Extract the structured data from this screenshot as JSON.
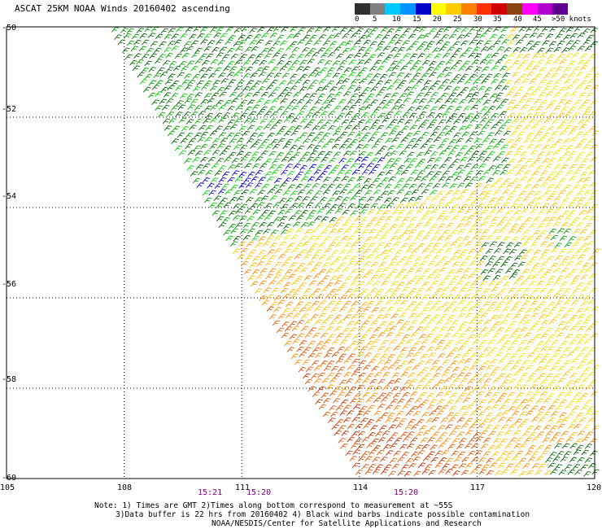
{
  "header": {
    "title": "ASCAT 25KM NOAA Winds 20160402 ascending"
  },
  "color_scale": {
    "labels": [
      "0",
      "5",
      "10",
      "15",
      "20",
      "25",
      "30",
      "35",
      "40",
      "45",
      ">50 knots"
    ],
    "colors": [
      "#303030",
      "#808080",
      "#00c8ff",
      "#0096ff",
      "#0000c8",
      "#ffff00",
      "#ffcc00",
      "#ff8000",
      "#ff3000",
      "#d00000",
      "#8b4513",
      "#ff00ff",
      "#b000d0",
      "#600090"
    ]
  },
  "map": {
    "lat_labels": [
      "-50",
      "-52",
      "-54",
      "-56",
      "-58",
      "-60"
    ],
    "lon_labels": [
      "105",
      "108",
      "111",
      "114",
      "117",
      "120"
    ],
    "time_labels": [
      "15:21",
      "15:20",
      "15:20"
    ],
    "lat_range": [
      -60,
      -50
    ],
    "lon_range": [
      105,
      120
    ],
    "barb_colors": {
      "green_dark": "#006400",
      "green": "#00a000",
      "green_bright": "#00d000",
      "blue": "#0000c8",
      "yellow": "#f0e000",
      "yellow_orange": "#ffc000",
      "orange": "#ff8c00",
      "orange_red": "#e05000",
      "red_brown": "#c03000"
    }
  },
  "notes": {
    "line1": "Note: 1) Times are GMT 2)Times along bottom correspond to measurement at ~55S",
    "line2": "3)Data buffer is 22 hrs from 20160402 4) Black wind barbs indicate possible contamination",
    "line3": "NOAA/NESDIS/Center for Satellite Applications and Research"
  }
}
